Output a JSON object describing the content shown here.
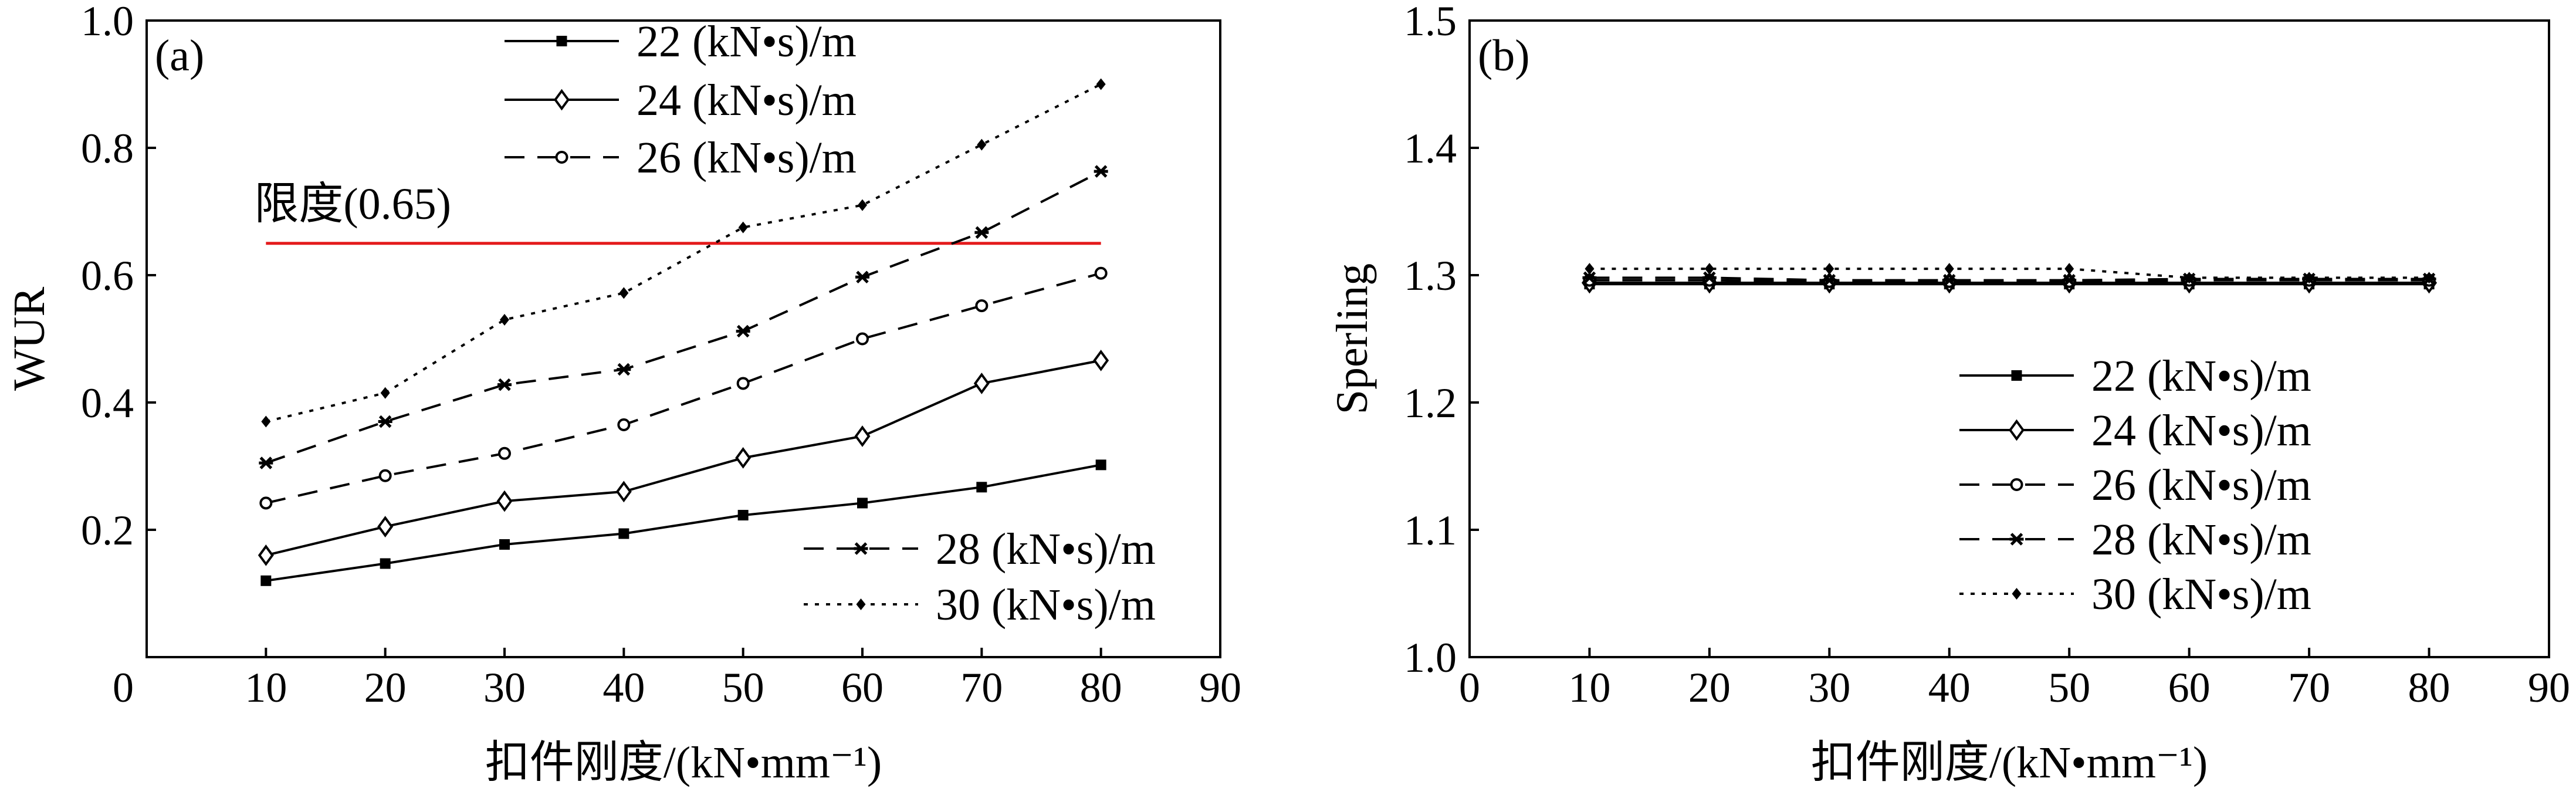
{
  "chart_data": [
    {
      "panel": "(a)",
      "type": "line",
      "xlabel": "扣件刚度/(kN•mm⁻¹)",
      "ylabel": "WUR",
      "xlim": [
        0,
        90
      ],
      "ylim": [
        0,
        1.0
      ],
      "xticks": [
        0,
        10,
        20,
        30,
        40,
        50,
        60,
        70,
        80,
        90
      ],
      "xtick_labels": [
        "0",
        "10",
        "20",
        "30",
        "40",
        "50",
        "60",
        "70",
        "80",
        "90"
      ],
      "yticks": [
        0,
        0.2,
        0.4,
        0.6,
        0.8,
        1.0
      ],
      "ytick_labels": [
        "0",
        "0.2",
        "0.4",
        "0.6",
        "0.8",
        "1.0"
      ],
      "x": [
        10,
        20,
        30,
        40,
        50,
        60,
        70,
        80
      ],
      "series": [
        {
          "name": "22 (kN•s)/m",
          "style": "solid",
          "marker": "square",
          "values": [
            0.12,
            0.147,
            0.177,
            0.194,
            0.223,
            0.242,
            0.267,
            0.302
          ]
        },
        {
          "name": "24 (kN•s)/m",
          "style": "solid",
          "marker": "diamond",
          "values": [
            0.16,
            0.205,
            0.245,
            0.26,
            0.313,
            0.347,
            0.43,
            0.466
          ]
        },
        {
          "name": "26 (kN•s)/m",
          "style": "dashed",
          "marker": "circle",
          "values": [
            0.242,
            0.285,
            0.32,
            0.365,
            0.43,
            0.5,
            0.552,
            0.603
          ]
        },
        {
          "name": "28 (kN•s)/m",
          "style": "dashed",
          "marker": "star",
          "values": [
            0.305,
            0.37,
            0.428,
            0.452,
            0.512,
            0.597,
            0.667,
            0.763
          ]
        },
        {
          "name": "30 (kN•s)/m",
          "style": "dotted",
          "marker": "diamond-small",
          "values": [
            0.37,
            0.415,
            0.53,
            0.572,
            0.675,
            0.71,
            0.805,
            0.9
          ]
        }
      ],
      "reference_line": {
        "label": "限度(0.65)",
        "value": 0.65,
        "color": "#e41a1c"
      }
    },
    {
      "panel": "(b)",
      "type": "line",
      "xlabel": "扣件刚度/(kN•mm⁻¹)",
      "ylabel": "Sperling",
      "xlim": [
        0,
        90
      ],
      "ylim": [
        1.0,
        1.5
      ],
      "xticks": [
        0,
        10,
        20,
        30,
        40,
        50,
        60,
        70,
        80,
        90
      ],
      "xtick_labels": [
        "0",
        "10",
        "20",
        "30",
        "40",
        "50",
        "60",
        "70",
        "80",
        "90"
      ],
      "yticks": [
        1.0,
        1.1,
        1.2,
        1.3,
        1.4,
        1.5
      ],
      "ytick_labels": [
        "1.0",
        "1.1",
        "1.2",
        "1.3",
        "1.4",
        "1.5"
      ],
      "x": [
        10,
        20,
        30,
        40,
        50,
        60,
        70,
        80
      ],
      "series": [
        {
          "name": "22 (kN•s)/m",
          "style": "solid",
          "marker": "square",
          "values": [
            1.293,
            1.293,
            1.293,
            1.293,
            1.293,
            1.293,
            1.293,
            1.293
          ]
        },
        {
          "name": "24 (kN•s)/m",
          "style": "solid",
          "marker": "diamond",
          "values": [
            1.294,
            1.294,
            1.294,
            1.294,
            1.294,
            1.294,
            1.294,
            1.294
          ]
        },
        {
          "name": "26 (kN•s)/m",
          "style": "dashed",
          "marker": "circle",
          "values": [
            1.296,
            1.296,
            1.295,
            1.295,
            1.295,
            1.296,
            1.296,
            1.296
          ]
        },
        {
          "name": "28 (kN•s)/m",
          "style": "dashed",
          "marker": "star",
          "values": [
            1.298,
            1.298,
            1.296,
            1.296,
            1.296,
            1.297,
            1.297,
            1.297
          ]
        },
        {
          "name": "30 (kN•s)/m",
          "style": "dotted",
          "marker": "diamond-small",
          "values": [
            1.305,
            1.305,
            1.305,
            1.305,
            1.305,
            1.298,
            1.298,
            1.298
          ]
        }
      ]
    }
  ]
}
